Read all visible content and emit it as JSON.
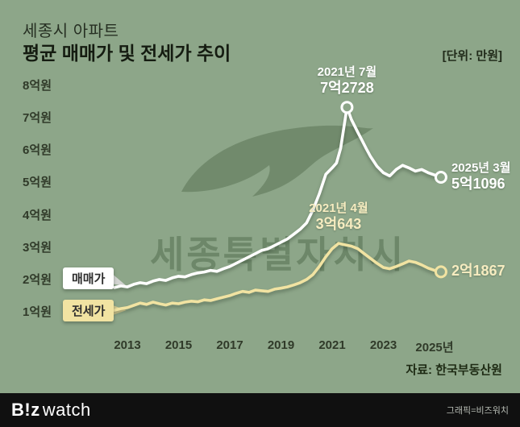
{
  "page": {
    "title_line1": "세종시 아파트",
    "title_line2": "평균 매매가 및 전세가 추이",
    "unit_label": "[단위: 만원]",
    "source": "자료: 한국부동산원"
  },
  "watermark": {
    "text": "세종특별자치시"
  },
  "footer": {
    "logo_b": "B!z",
    "logo_watch": "watch",
    "credit": "그래픽=비즈워치"
  },
  "colors": {
    "background": "#8DA689",
    "sale_line": "#FFFFFF",
    "jeonse_line": "#F1E3A2",
    "jeonse_text": "#F6ECC0",
    "footer_bg": "#101010",
    "watermark_green": "#50694B"
  },
  "chart_data": {
    "type": "line",
    "title": "세종시 아파트 평균 매매가 및 전세가 추이",
    "unit": "만원",
    "grid": false,
    "ylim": [
      10000,
      80000
    ],
    "x_range": [
      2012.5,
      2025.25
    ],
    "y_ticks": [
      {
        "value": 80000,
        "label": "8억원"
      },
      {
        "value": 70000,
        "label": "7억원"
      },
      {
        "value": 60000,
        "label": "6억원"
      },
      {
        "value": 50000,
        "label": "5억원"
      },
      {
        "value": 40000,
        "label": "4억원"
      },
      {
        "value": 30000,
        "label": "3억원"
      },
      {
        "value": 20000,
        "label": "2억원"
      },
      {
        "value": 10000,
        "label": "1억원"
      }
    ],
    "x_ticks": [
      {
        "year": 2013,
        "label": "2013"
      },
      {
        "year": 2015,
        "label": "2015"
      },
      {
        "year": 2017,
        "label": "2017"
      },
      {
        "year": 2019,
        "label": "2019"
      },
      {
        "year": 2021,
        "label": "2021"
      },
      {
        "year": 2023,
        "label": "2023"
      },
      {
        "year": 2025,
        "label": "2025년"
      }
    ],
    "series": [
      {
        "name": "매매가",
        "color": "#FFFFFF",
        "x": [
          2012.5,
          2012.75,
          2013,
          2013.25,
          2013.5,
          2013.75,
          2014,
          2014.25,
          2014.5,
          2014.75,
          2015,
          2015.25,
          2015.5,
          2015.75,
          2016,
          2016.25,
          2016.5,
          2016.75,
          2017,
          2017.25,
          2017.5,
          2017.75,
          2018,
          2018.25,
          2018.5,
          2018.75,
          2019,
          2019.25,
          2019.5,
          2019.75,
          2020,
          2020.25,
          2020.5,
          2020.75,
          2021,
          2021.17,
          2021.33,
          2021.58,
          2021.75,
          2022,
          2022.17,
          2022.33,
          2022.5,
          2022.75,
          2023,
          2023.25,
          2023.5,
          2023.75,
          2024,
          2024.25,
          2024.5,
          2024.75,
          2025,
          2025.25
        ],
        "values": [
          17000,
          17500,
          17200,
          18000,
          18500,
          18200,
          19000,
          19500,
          19200,
          20000,
          20500,
          20300,
          21000,
          21500,
          21800,
          22300,
          22000,
          22800,
          23500,
          24500,
          25500,
          26500,
          27500,
          28500,
          29000,
          30000,
          31000,
          32000,
          33500,
          35000,
          37000,
          41000,
          46000,
          52000,
          54000,
          55500,
          60000,
          72728,
          69000,
          65000,
          62500,
          60000,
          57500,
          54500,
          52500,
          51500,
          53500,
          54800,
          54000,
          53000,
          53500,
          52500,
          51800,
          51096
        ],
        "peak_label": {
          "date": "2021년 7월",
          "value": "7억2728"
        },
        "end_label": {
          "date": "2025년 3월",
          "value": "5억1096"
        }
      },
      {
        "name": "전세가",
        "color": "#F1E3A2",
        "x": [
          2012.5,
          2012.75,
          2013,
          2013.25,
          2013.5,
          2013.75,
          2014,
          2014.25,
          2014.5,
          2014.75,
          2015,
          2015.25,
          2015.5,
          2015.75,
          2016,
          2016.25,
          2016.5,
          2016.75,
          2017,
          2017.25,
          2017.5,
          2017.75,
          2018,
          2018.25,
          2018.5,
          2018.75,
          2019,
          2019.25,
          2019.5,
          2019.75,
          2020,
          2020.25,
          2020.5,
          2020.75,
          2021,
          2021.25,
          2021.5,
          2021.75,
          2022,
          2022.25,
          2022.5,
          2022.75,
          2023,
          2023.25,
          2023.5,
          2023.75,
          2024,
          2024.25,
          2024.5,
          2024.75,
          2025,
          2025.25
        ],
        "values": [
          10000,
          10500,
          10800,
          11500,
          12200,
          11800,
          12500,
          12000,
          11600,
          12200,
          12000,
          12500,
          12800,
          12600,
          13200,
          13000,
          13500,
          14000,
          14500,
          15200,
          15800,
          15500,
          16200,
          16000,
          15800,
          16500,
          16800,
          17200,
          17800,
          18500,
          19500,
          21000,
          23500,
          26500,
          29000,
          30643,
          30200,
          29800,
          29000,
          27500,
          26000,
          24500,
          23200,
          22800,
          23500,
          24300,
          25200,
          24800,
          24000,
          23000,
          22300,
          21867
        ],
        "peak_label": {
          "date": "2021년 4월",
          "value": "3억643"
        },
        "end_label": {
          "value": "2억1867"
        }
      }
    ]
  }
}
